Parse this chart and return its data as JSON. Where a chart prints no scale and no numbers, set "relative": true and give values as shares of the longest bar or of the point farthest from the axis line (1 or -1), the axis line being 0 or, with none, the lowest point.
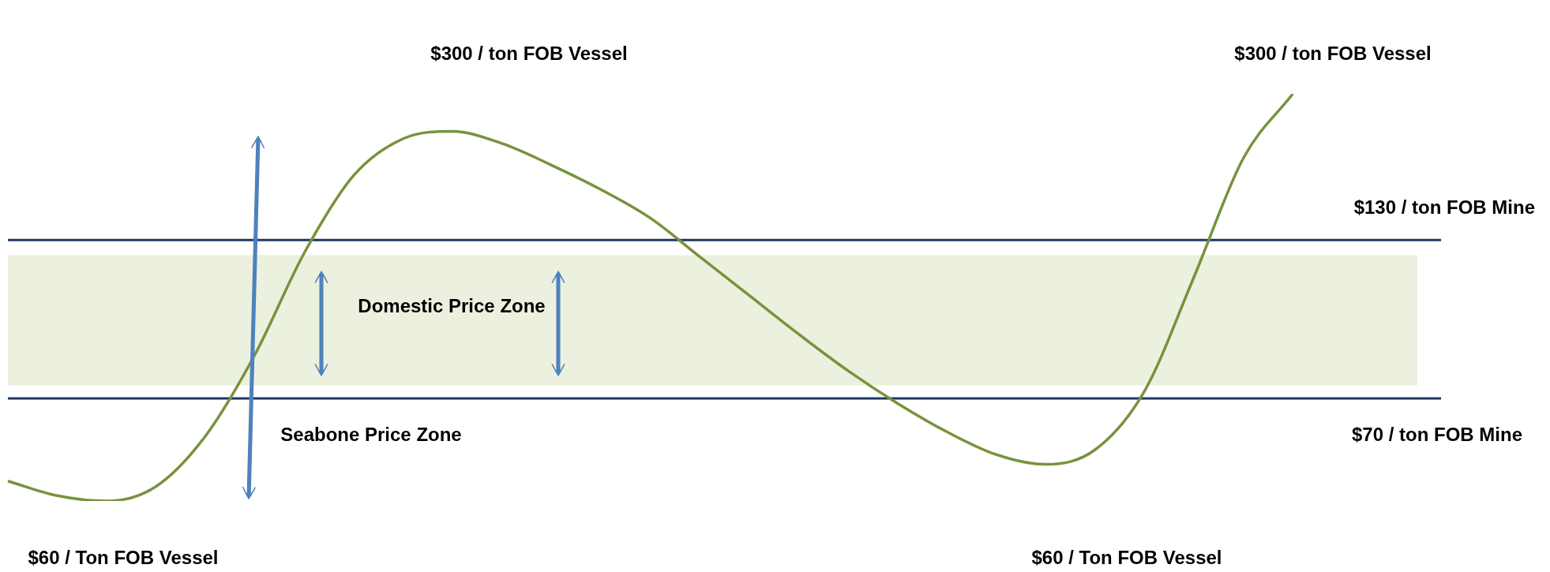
{
  "chart_data": {
    "type": "line",
    "relative": true,
    "categories": [
      null,
      null,
      null,
      null,
      null,
      null,
      null,
      null,
      null,
      null,
      null,
      null,
      null,
      null,
      null,
      null,
      null,
      null,
      null,
      null,
      null,
      null,
      null,
      null,
      null,
      null,
      null,
      null,
      null,
      null
    ],
    "series": [
      {
        "color": "#77933c",
        "values": [
          0.049,
          0.013,
          0,
          0.036,
          0.16,
          0.36,
          0.61,
          0.8,
          0.89,
          0.908,
          0.878,
          0.825,
          0.765,
          0.695,
          0.6,
          0.505,
          0.41,
          0.32,
          0.24,
          0.17,
          0.114,
          0.09,
          0.126,
          0.27,
          0.55,
          0.842,
          1,
          null,
          null,
          null
        ]
      }
    ],
    "ref_lines": [
      {
        "axis": "y",
        "value": 0.641,
        "label": "$130 / ton FOB Mine",
        "color": "#1f3864"
      },
      {
        "axis": "y",
        "value": 0.252,
        "label": "$70 / ton FOB Mine",
        "color": "#1f3864"
      }
    ],
    "bands": [
      {
        "axis": "y",
        "from": 0.284,
        "to": 0.604,
        "label": "Domestic Price Zone",
        "color": "#ebf1de"
      }
    ],
    "annotations": [
      "$300 / ton FOB Vessel",
      "$300 / ton FOB Vessel",
      "Seabone Price Zone",
      "$60 / Ton FOB Vessel",
      "$60 / Ton FOB Vessel"
    ],
    "marker": "none"
  }
}
